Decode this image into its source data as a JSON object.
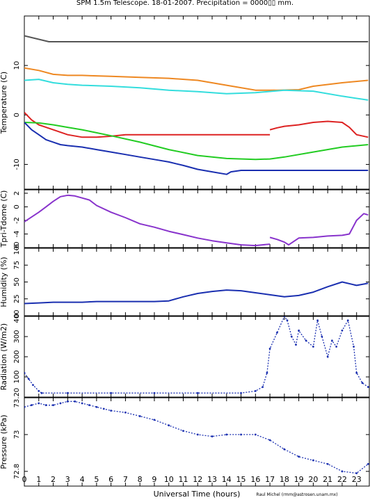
{
  "title": "SPM 1.5m Telescope. 18-01-2007. Precipitation = 0000▯▯ mm.",
  "xlabel": "Universal Time (hours)",
  "credit": "Raul Michel (rmm@astrosen.unam.mx)",
  "x_ticks": [
    "0",
    "1",
    "2",
    "3",
    "4",
    "5",
    "6",
    "7",
    "8",
    "9",
    "10",
    "11",
    "12",
    "13",
    "14",
    "15",
    "16",
    "17",
    "18",
    "19",
    "20",
    "21",
    "22",
    "23"
  ],
  "chart_data": [
    {
      "type": "line",
      "ylabel": "Temperature (C)",
      "ylim": [
        -15,
        20
      ],
      "y_ticks": [
        {
          "v": 10,
          "label": "10"
        },
        {
          "v": 0,
          "label": "0"
        },
        {
          "v": -10,
          "label": "-10"
        }
      ],
      "series": [
        {
          "color": "#555555",
          "x": [
            0,
            1.7,
            23.8
          ],
          "y": [
            16,
            14.8,
            14.8
          ]
        },
        {
          "color": "#ee8822",
          "x": [
            0,
            1,
            2,
            3,
            4,
            6,
            8,
            10,
            12,
            14,
            16,
            17.5,
            19,
            20,
            22,
            23.8
          ],
          "y": [
            9.5,
            9,
            8.2,
            8,
            8,
            7.8,
            7.6,
            7.4,
            7,
            6,
            5,
            5,
            5.1,
            5.8,
            6.5,
            7
          ]
        },
        {
          "color": "#33dddd",
          "x": [
            0,
            1,
            2,
            3,
            4,
            6,
            8,
            10,
            12,
            14,
            16,
            18,
            20,
            22,
            23.8
          ],
          "y": [
            7,
            7.2,
            6.5,
            6.2,
            6,
            5.8,
            5.5,
            5,
            4.7,
            4.3,
            4.5,
            5,
            4.8,
            3.8,
            3
          ]
        },
        {
          "color": "#dd2222",
          "x": [
            0,
            0.5,
            1,
            1.5,
            2,
            3,
            4,
            5,
            6,
            7,
            8.5,
            12,
            17
          ],
          "y": [
            0.5,
            -1,
            -2,
            -2.5,
            -3,
            -4,
            -4.5,
            -4.5,
            -4.3,
            -4,
            -4,
            -4,
            -4
          ]
        },
        {
          "color": "#dd2222",
          "x": [
            17,
            17.5,
            18,
            19,
            20,
            21,
            22,
            22.5,
            23,
            23.8
          ],
          "y": [
            -3,
            -2.6,
            -2.3,
            -2,
            -1.5,
            -1.3,
            -1.5,
            -2.5,
            -4,
            -4.5
          ]
        },
        {
          "color": "#22cc22",
          "x": [
            0,
            1,
            2,
            3,
            4,
            6,
            8,
            10,
            12,
            14,
            16,
            17,
            18,
            20,
            22,
            23.8
          ],
          "y": [
            -1.5,
            -1.6,
            -2,
            -2.5,
            -3,
            -4.2,
            -5.5,
            -7,
            -8.2,
            -8.8,
            -9,
            -8.9,
            -8.5,
            -7.5,
            -6.5,
            -6
          ]
        },
        {
          "color": "#1a2fb0",
          "x": [
            0,
            0.5,
            1,
            1.5,
            2,
            2.5,
            3,
            4,
            5,
            6,
            7,
            8,
            9,
            10,
            11,
            12,
            13,
            14,
            14.3,
            15,
            17,
            20,
            23.8
          ],
          "y": [
            -1.5,
            -3,
            -4,
            -5,
            -5.5,
            -6,
            -6.2,
            -6.5,
            -7,
            -7.5,
            -8,
            -8.5,
            -9,
            -9.5,
            -10.2,
            -11,
            -11.5,
            -12,
            -11.5,
            -11.2,
            -11.2,
            -11.2,
            -11.2
          ]
        }
      ]
    },
    {
      "type": "line",
      "ylabel": "Tpri-Tdome (C)",
      "ylim": [
        -6,
        2.5
      ],
      "y_ticks": [
        {
          "v": 2,
          "label": "2"
        },
        {
          "v": 0,
          "label": "0"
        },
        {
          "v": -2,
          "label": "-2"
        },
        {
          "v": -4,
          "label": "-4"
        },
        {
          "v": -6,
          "label": "-6"
        }
      ],
      "series": [
        {
          "color": "#8833cc",
          "x": [
            0,
            0.5,
            1,
            1.5,
            2,
            2.5,
            3,
            3.5,
            4,
            4.5,
            5,
            6,
            7,
            8,
            9,
            10,
            11,
            12,
            13,
            14,
            15,
            16,
            17
          ],
          "y": [
            -2.2,
            -1.5,
            -0.8,
            0,
            0.8,
            1.5,
            1.7,
            1.6,
            1.3,
            1,
            0.2,
            -0.8,
            -1.6,
            -2.5,
            -3,
            -3.6,
            -4.1,
            -4.6,
            -5,
            -5.3,
            -5.6,
            -5.7,
            -5.5
          ]
        },
        {
          "color": "#8833cc",
          "x": [
            17,
            17.5,
            18,
            18.3,
            19,
            20,
            21,
            22,
            22.5,
            23,
            23.5,
            23.8
          ],
          "y": [
            -4.5,
            -4.8,
            -5.2,
            -5.6,
            -4.6,
            -4.5,
            -4.3,
            -4.2,
            -4,
            -2,
            -1,
            -1.2
          ]
        }
      ]
    },
    {
      "type": "line",
      "ylabel": "Humidity (%)",
      "ylim": [
        0,
        100
      ],
      "y_ticks": [
        {
          "v": 100,
          "label": "100"
        },
        {
          "v": 75,
          "label": "75"
        },
        {
          "v": 50,
          "label": "50"
        },
        {
          "v": 25,
          "label": "25"
        },
        {
          "v": 0,
          "label": "0"
        }
      ],
      "series": [
        {
          "color": "#1a2fb0",
          "x": [
            0,
            1,
            2,
            3,
            4,
            5,
            6,
            7,
            8,
            9,
            10,
            11,
            12,
            13,
            14,
            15,
            16,
            17,
            18,
            19,
            20,
            21,
            22,
            23,
            23.8
          ],
          "y": [
            18,
            19,
            20,
            20,
            20,
            21,
            21,
            21,
            21,
            21,
            22,
            28,
            33,
            36,
            38,
            37,
            34,
            31,
            28,
            30,
            35,
            43,
            50,
            45,
            48
          ]
        }
      ]
    },
    {
      "type": "scatter",
      "ylabel": "Radiation (W/m2)",
      "ylim": [
        0,
        400
      ],
      "y_ticks": [
        {
          "v": 400,
          "label": "400"
        },
        {
          "v": 300,
          "label": "300"
        },
        {
          "v": 200,
          "label": "200"
        },
        {
          "v": 100,
          "label": "100"
        }
      ],
      "series": [
        {
          "color": "#1a2fb0",
          "x": [
            0,
            0.3,
            0.6,
            1,
            1.2,
            3,
            6,
            9,
            12,
            15,
            16,
            16.5,
            16.8,
            17,
            17.5,
            18,
            18.2,
            18.5,
            18.8,
            19,
            19.5,
            20,
            20.3,
            20.6,
            21,
            21.3,
            21.6,
            22,
            22.4,
            22.8,
            23,
            23.4,
            23.8
          ],
          "y": [
            120,
            90,
            60,
            30,
            20,
            20,
            20,
            20,
            20,
            20,
            30,
            50,
            120,
            240,
            320,
            400,
            380,
            300,
            260,
            330,
            280,
            250,
            380,
            300,
            200,
            280,
            250,
            330,
            380,
            250,
            120,
            70,
            50
          ]
        }
      ]
    },
    {
      "type": "scatter",
      "ylabel": "Pressure (kPa)",
      "ylim": [
        72.72,
        73.2
      ],
      "y_ticks": [
        {
          "v": 73.2,
          "label": "73.20"
        },
        {
          "v": 73,
          "label": "73"
        },
        {
          "v": 72.8,
          "label": "72.8"
        }
      ],
      "series": [
        {
          "color": "#1a2fb0",
          "x": [
            0,
            0.5,
            1,
            1.5,
            2,
            2.5,
            3,
            3.5,
            4,
            4.5,
            5,
            5.5,
            6,
            7,
            8,
            9,
            10,
            11,
            12,
            13,
            14,
            15,
            16,
            17,
            18,
            19,
            20,
            21,
            22,
            23,
            23.8
          ],
          "y": [
            73.15,
            73.16,
            73.17,
            73.16,
            73.16,
            73.17,
            73.18,
            73.18,
            73.17,
            73.16,
            73.15,
            73.14,
            73.13,
            73.12,
            73.1,
            73.08,
            73.05,
            73.02,
            73,
            72.99,
            73,
            73,
            73,
            72.97,
            72.92,
            72.88,
            72.86,
            72.84,
            72.8,
            72.79,
            72.84
          ]
        }
      ]
    }
  ]
}
